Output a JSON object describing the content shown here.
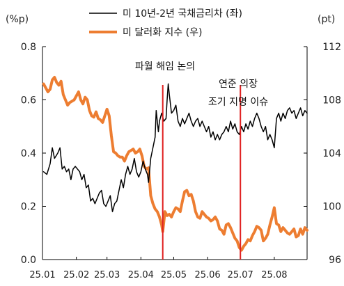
{
  "chart_data": {
    "type": "line",
    "left_axis": {
      "label": "(%p)",
      "ticks": [
        "0.0",
        "0.2",
        "0.4",
        "0.6",
        "0.8"
      ],
      "min": 0.0,
      "max": 0.8
    },
    "right_axis": {
      "label": "(pt)",
      "ticks": [
        "96",
        "100",
        "104",
        "108",
        "112"
      ],
      "min": 96,
      "max": 112
    },
    "x_axis": {
      "ticks": [
        "25.01",
        "25.02",
        "25.03",
        "25.04",
        "25.05",
        "25.06",
        "25.07",
        "25.08"
      ],
      "start": "2025-01-01",
      "end": "2025-08-31"
    },
    "grid": false,
    "legend": "top-center",
    "series": [
      {
        "name": "미 10년-2년 국채금리차 (좌)",
        "axis": "left",
        "color": "#000000",
        "points": [
          [
            "2025-01-02",
            0.33
          ],
          [
            "2025-01-05",
            0.32
          ],
          [
            "2025-01-08",
            0.36
          ],
          [
            "2025-01-10",
            0.42
          ],
          [
            "2025-01-12",
            0.38
          ],
          [
            "2025-01-15",
            0.4
          ],
          [
            "2025-01-17",
            0.42
          ],
          [
            "2025-01-19",
            0.34
          ],
          [
            "2025-01-21",
            0.35
          ],
          [
            "2025-01-23",
            0.33
          ],
          [
            "2025-01-25",
            0.34
          ],
          [
            "2025-01-27",
            0.3
          ],
          [
            "2025-01-29",
            0.34
          ],
          [
            "2025-01-31",
            0.35
          ],
          [
            "2025-02-02",
            0.34
          ],
          [
            "2025-02-04",
            0.33
          ],
          [
            "2025-02-06",
            0.3
          ],
          [
            "2025-02-08",
            0.32
          ],
          [
            "2025-02-10",
            0.27
          ],
          [
            "2025-02-12",
            0.28
          ],
          [
            "2025-02-14",
            0.22
          ],
          [
            "2025-02-16",
            0.23
          ],
          [
            "2025-02-18",
            0.21
          ],
          [
            "2025-02-20",
            0.23
          ],
          [
            "2025-02-22",
            0.25
          ],
          [
            "2025-02-24",
            0.26
          ],
          [
            "2025-02-26",
            0.21
          ],
          [
            "2025-02-28",
            0.2
          ],
          [
            "2025-03-02",
            0.22
          ],
          [
            "2025-03-04",
            0.24
          ],
          [
            "2025-03-06",
            0.18
          ],
          [
            "2025-03-08",
            0.21
          ],
          [
            "2025-03-10",
            0.22
          ],
          [
            "2025-03-12",
            0.26
          ],
          [
            "2025-03-14",
            0.3
          ],
          [
            "2025-03-16",
            0.27
          ],
          [
            "2025-03-18",
            0.32
          ],
          [
            "2025-03-20",
            0.35
          ],
          [
            "2025-03-22",
            0.32
          ],
          [
            "2025-03-24",
            0.34
          ],
          [
            "2025-03-26",
            0.38
          ],
          [
            "2025-03-28",
            0.33
          ],
          [
            "2025-03-30",
            0.31
          ],
          [
            "2025-04-01",
            0.33
          ],
          [
            "2025-04-03",
            0.37
          ],
          [
            "2025-04-05",
            0.34
          ],
          [
            "2025-04-07",
            0.32
          ],
          [
            "2025-04-08",
            0.29
          ],
          [
            "2025-04-10",
            0.38
          ],
          [
            "2025-04-12",
            0.42
          ],
          [
            "2025-04-14",
            0.46
          ],
          [
            "2025-04-15",
            0.56
          ],
          [
            "2025-04-17",
            0.48
          ],
          [
            "2025-04-18",
            0.52
          ],
          [
            "2025-04-20",
            0.55
          ],
          [
            "2025-04-22",
            0.52
          ],
          [
            "2025-04-24",
            0.53
          ],
          [
            "2025-04-25",
            0.6
          ],
          [
            "2025-04-26",
            0.66
          ],
          [
            "2025-04-27",
            0.62
          ],
          [
            "2025-04-29",
            0.55
          ],
          [
            "2025-05-01",
            0.56
          ],
          [
            "2025-05-03",
            0.58
          ],
          [
            "2025-05-05",
            0.52
          ],
          [
            "2025-05-07",
            0.5
          ],
          [
            "2025-05-09",
            0.53
          ],
          [
            "2025-05-11",
            0.51
          ],
          [
            "2025-05-13",
            0.53
          ],
          [
            "2025-05-15",
            0.55
          ],
          [
            "2025-05-17",
            0.52
          ],
          [
            "2025-05-19",
            0.5
          ],
          [
            "2025-05-21",
            0.52
          ],
          [
            "2025-05-23",
            0.53
          ],
          [
            "2025-05-25",
            0.5
          ],
          [
            "2025-05-27",
            0.52
          ],
          [
            "2025-05-29",
            0.5
          ],
          [
            "2025-05-31",
            0.48
          ],
          [
            "2025-06-02",
            0.5
          ],
          [
            "2025-06-04",
            0.46
          ],
          [
            "2025-06-06",
            0.48
          ],
          [
            "2025-06-08",
            0.45
          ],
          [
            "2025-06-10",
            0.47
          ],
          [
            "2025-06-12",
            0.45
          ],
          [
            "2025-06-14",
            0.47
          ],
          [
            "2025-06-16",
            0.48
          ],
          [
            "2025-06-18",
            0.5
          ],
          [
            "2025-06-20",
            0.48
          ],
          [
            "2025-06-22",
            0.52
          ],
          [
            "2025-06-24",
            0.49
          ],
          [
            "2025-06-26",
            0.51
          ],
          [
            "2025-06-28",
            0.48
          ],
          [
            "2025-06-30",
            0.47
          ],
          [
            "2025-07-02",
            0.5
          ],
          [
            "2025-07-04",
            0.48
          ],
          [
            "2025-07-06",
            0.51
          ],
          [
            "2025-07-08",
            0.49
          ],
          [
            "2025-07-10",
            0.52
          ],
          [
            "2025-07-12",
            0.5
          ],
          [
            "2025-07-14",
            0.53
          ],
          [
            "2025-07-16",
            0.55
          ],
          [
            "2025-07-18",
            0.53
          ],
          [
            "2025-07-20",
            0.5
          ],
          [
            "2025-07-22",
            0.48
          ],
          [
            "2025-07-24",
            0.5
          ],
          [
            "2025-07-26",
            0.45
          ],
          [
            "2025-07-28",
            0.47
          ],
          [
            "2025-07-30",
            0.45
          ],
          [
            "2025-08-01",
            0.42
          ],
          [
            "2025-08-03",
            0.53
          ],
          [
            "2025-08-05",
            0.55
          ],
          [
            "2025-08-07",
            0.52
          ],
          [
            "2025-08-09",
            0.55
          ],
          [
            "2025-08-11",
            0.53
          ],
          [
            "2025-08-13",
            0.56
          ],
          [
            "2025-08-15",
            0.57
          ],
          [
            "2025-08-17",
            0.55
          ],
          [
            "2025-08-19",
            0.56
          ],
          [
            "2025-08-21",
            0.53
          ],
          [
            "2025-08-23",
            0.55
          ],
          [
            "2025-08-25",
            0.57
          ],
          [
            "2025-08-27",
            0.54
          ],
          [
            "2025-08-29",
            0.56
          ],
          [
            "2025-08-31",
            0.55
          ]
        ]
      },
      {
        "name": "미 달러화 지수 (우)",
        "axis": "right",
        "color": "#ED7D31",
        "points": [
          [
            "2025-01-02",
            109.2
          ],
          [
            "2025-01-04",
            108.9
          ],
          [
            "2025-01-06",
            108.6
          ],
          [
            "2025-01-08",
            108.8
          ],
          [
            "2025-01-10",
            109.5
          ],
          [
            "2025-01-12",
            109.7
          ],
          [
            "2025-01-14",
            109.3
          ],
          [
            "2025-01-16",
            109.1
          ],
          [
            "2025-01-18",
            109.4
          ],
          [
            "2025-01-20",
            108.4
          ],
          [
            "2025-01-22",
            108.0
          ],
          [
            "2025-01-24",
            107.6
          ],
          [
            "2025-01-26",
            107.8
          ],
          [
            "2025-01-28",
            107.9
          ],
          [
            "2025-01-30",
            108.0
          ],
          [
            "2025-02-01",
            108.3
          ],
          [
            "2025-02-03",
            108.6
          ],
          [
            "2025-02-05",
            108.0
          ],
          [
            "2025-02-07",
            107.7
          ],
          [
            "2025-02-09",
            108.2
          ],
          [
            "2025-02-11",
            108.0
          ],
          [
            "2025-02-13",
            107.2
          ],
          [
            "2025-02-15",
            106.8
          ],
          [
            "2025-02-17",
            106.7
          ],
          [
            "2025-02-19",
            107.1
          ],
          [
            "2025-02-21",
            106.6
          ],
          [
            "2025-02-23",
            106.5
          ],
          [
            "2025-02-25",
            106.3
          ],
          [
            "2025-02-27",
            106.8
          ],
          [
            "2025-03-01",
            107.3
          ],
          [
            "2025-03-03",
            106.8
          ],
          [
            "2025-03-05",
            105.3
          ],
          [
            "2025-03-07",
            104.1
          ],
          [
            "2025-03-09",
            104.0
          ],
          [
            "2025-03-11",
            103.8
          ],
          [
            "2025-03-13",
            103.7
          ],
          [
            "2025-03-15",
            103.7
          ],
          [
            "2025-03-17",
            103.4
          ],
          [
            "2025-03-19",
            103.8
          ],
          [
            "2025-03-21",
            104.1
          ],
          [
            "2025-03-23",
            104.2
          ],
          [
            "2025-03-25",
            104.3
          ],
          [
            "2025-03-27",
            104.0
          ],
          [
            "2025-03-29",
            104.1
          ],
          [
            "2025-03-31",
            104.3
          ],
          [
            "2025-04-02",
            103.8
          ],
          [
            "2025-04-04",
            103.0
          ],
          [
            "2025-04-06",
            102.8
          ],
          [
            "2025-04-08",
            102.9
          ],
          [
            "2025-04-10",
            100.8
          ],
          [
            "2025-04-12",
            100.2
          ],
          [
            "2025-04-14",
            99.8
          ],
          [
            "2025-04-16",
            99.6
          ],
          [
            "2025-04-18",
            99.2
          ],
          [
            "2025-04-20",
            98.6
          ],
          [
            "2025-04-21",
            98.1
          ],
          [
            "2025-04-23",
            99.6
          ],
          [
            "2025-04-25",
            99.3
          ],
          [
            "2025-04-27",
            99.4
          ],
          [
            "2025-04-29",
            99.2
          ],
          [
            "2025-05-01",
            99.6
          ],
          [
            "2025-05-03",
            99.9
          ],
          [
            "2025-05-05",
            99.8
          ],
          [
            "2025-05-07",
            99.6
          ],
          [
            "2025-05-09",
            100.4
          ],
          [
            "2025-05-11",
            101.1
          ],
          [
            "2025-05-13",
            101.2
          ],
          [
            "2025-05-15",
            100.8
          ],
          [
            "2025-05-17",
            100.9
          ],
          [
            "2025-05-19",
            100.4
          ],
          [
            "2025-05-21",
            99.6
          ],
          [
            "2025-05-23",
            99.2
          ],
          [
            "2025-05-25",
            99.1
          ],
          [
            "2025-05-27",
            99.6
          ],
          [
            "2025-05-29",
            99.4
          ],
          [
            "2025-05-31",
            99.2
          ],
          [
            "2025-06-02",
            99.1
          ],
          [
            "2025-06-04",
            98.9
          ],
          [
            "2025-06-06",
            99.0
          ],
          [
            "2025-06-08",
            99.2
          ],
          [
            "2025-06-10",
            98.9
          ],
          [
            "2025-06-12",
            98.3
          ],
          [
            "2025-06-14",
            98.2
          ],
          [
            "2025-06-16",
            97.9
          ],
          [
            "2025-06-18",
            98.6
          ],
          [
            "2025-06-20",
            98.7
          ],
          [
            "2025-06-22",
            98.4
          ],
          [
            "2025-06-24",
            98.0
          ],
          [
            "2025-06-26",
            97.6
          ],
          [
            "2025-06-28",
            97.4
          ],
          [
            "2025-06-30",
            96.9
          ],
          [
            "2025-07-02",
            96.7
          ],
          [
            "2025-07-04",
            97.0
          ],
          [
            "2025-07-06",
            97.2
          ],
          [
            "2025-07-08",
            97.5
          ],
          [
            "2025-07-10",
            97.4
          ],
          [
            "2025-07-12",
            97.8
          ],
          [
            "2025-07-14",
            98.1
          ],
          [
            "2025-07-16",
            98.5
          ],
          [
            "2025-07-18",
            98.4
          ],
          [
            "2025-07-20",
            98.2
          ],
          [
            "2025-07-22",
            97.4
          ],
          [
            "2025-07-24",
            97.6
          ],
          [
            "2025-07-26",
            97.9
          ],
          [
            "2025-07-28",
            98.6
          ],
          [
            "2025-07-30",
            99.2
          ],
          [
            "2025-08-01",
            99.9
          ],
          [
            "2025-08-03",
            98.7
          ],
          [
            "2025-08-05",
            98.6
          ],
          [
            "2025-08-07",
            98.1
          ],
          [
            "2025-08-09",
            98.4
          ],
          [
            "2025-08-11",
            98.2
          ],
          [
            "2025-08-13",
            98.0
          ],
          [
            "2025-08-15",
            97.9
          ],
          [
            "2025-08-17",
            98.1
          ],
          [
            "2025-08-19",
            98.3
          ],
          [
            "2025-08-21",
            97.7
          ],
          [
            "2025-08-23",
            97.8
          ],
          [
            "2025-08-25",
            98.3
          ],
          [
            "2025-08-27",
            97.9
          ],
          [
            "2025-08-29",
            98.4
          ],
          [
            "2025-08-31",
            98.2
          ]
        ]
      }
    ],
    "annotations": [
      {
        "date": "2025-04-21",
        "lines": [
          "파월 해임 논의"
        ],
        "color": "#E02020"
      },
      {
        "date": "2025-07-01",
        "lines": [
          "연준 의장",
          "조기 지명 이슈"
        ],
        "color": "#E02020"
      }
    ]
  }
}
